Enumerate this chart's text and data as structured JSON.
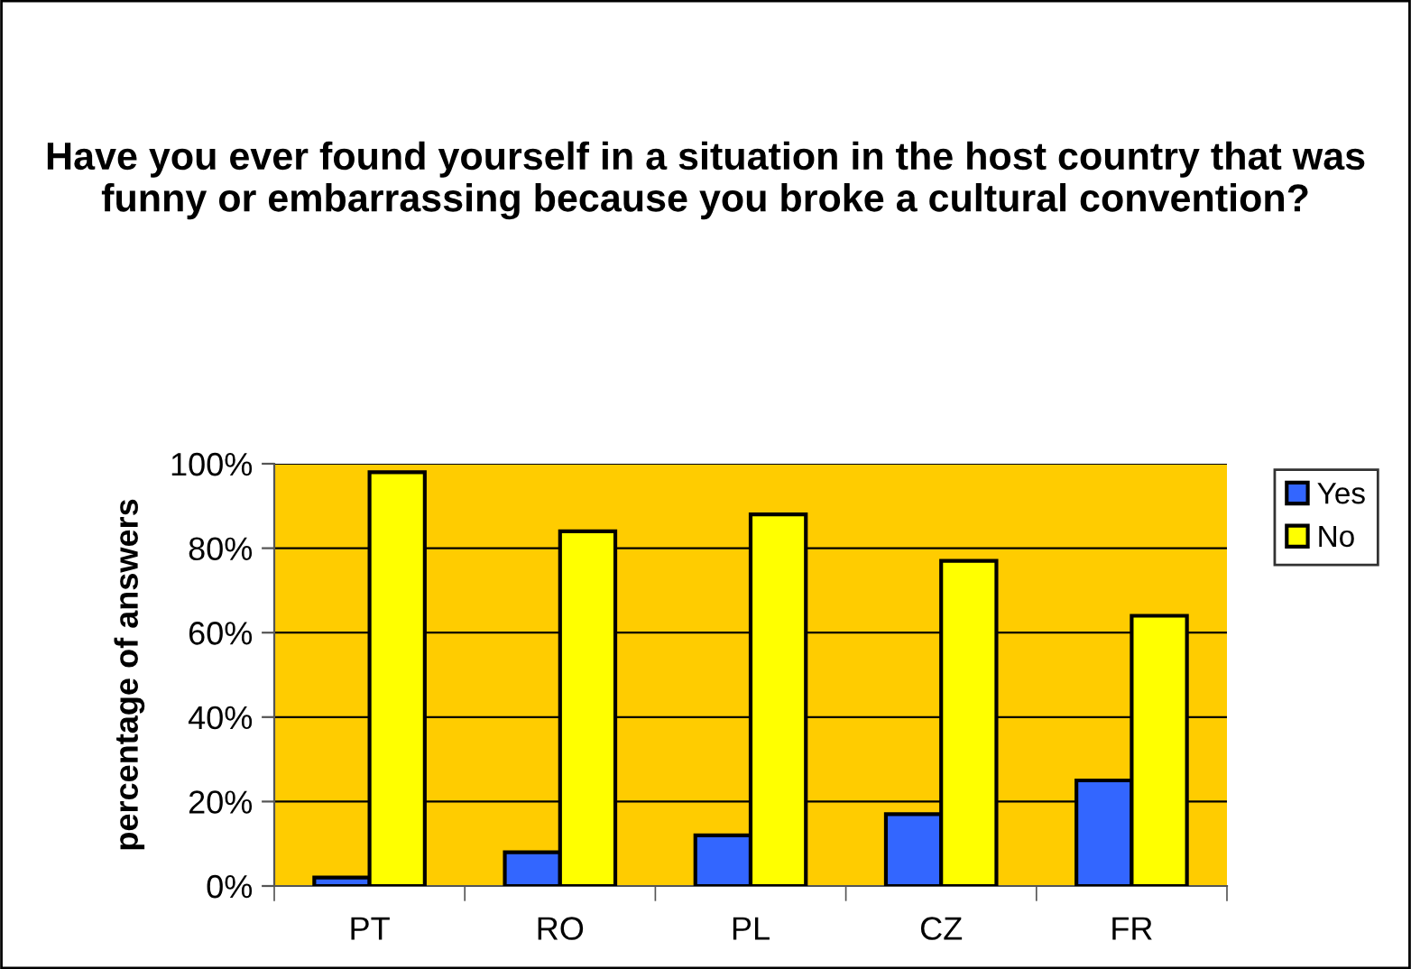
{
  "chart_data": {
    "type": "bar",
    "title": "Have you ever found yourself in a situation in the host country that was funny or embarrassing because you broke a cultural convention?",
    "ylabel": "percentage of answers",
    "categories": [
      "PT",
      "RO",
      "PL",
      "CZ",
      "FR"
    ],
    "series": [
      {
        "name": "Yes",
        "color": "#3366ff",
        "values": [
          2,
          8,
          12,
          17,
          25
        ]
      },
      {
        "name": "No",
        "color": "#ffff00",
        "values": [
          98,
          84,
          88,
          77,
          64
        ]
      }
    ],
    "ylim": [
      0,
      100
    ],
    "yticks": [
      {
        "value": 0,
        "label": "0%"
      },
      {
        "value": 20,
        "label": "20%"
      },
      {
        "value": 40,
        "label": "40%"
      },
      {
        "value": 60,
        "label": "60%"
      },
      {
        "value": 80,
        "label": "80%"
      },
      {
        "value": 100,
        "label": "100%"
      }
    ],
    "grid": "y",
    "legend": "top right"
  }
}
